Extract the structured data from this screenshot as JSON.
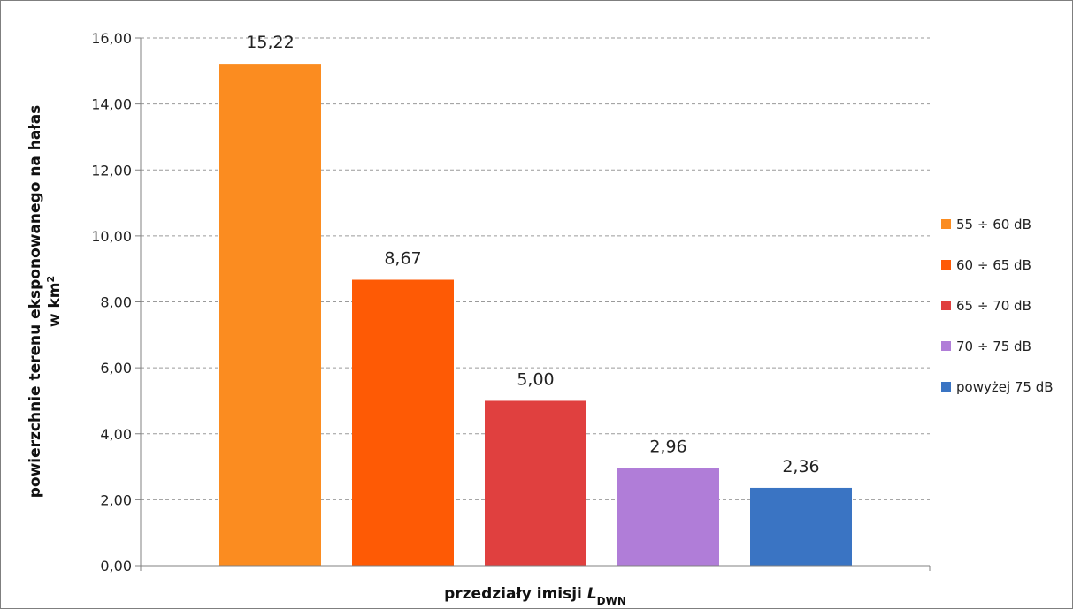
{
  "chart_data": {
    "type": "bar",
    "categories": [
      "55 ÷ 60 dB",
      "60 ÷ 65 dB",
      "65 ÷ 70 dB",
      "70 ÷ 75 dB",
      "powyżej 75 dB"
    ],
    "values": [
      15.22,
      8.67,
      5.0,
      2.96,
      2.36
    ],
    "data_labels": [
      "15,22",
      "8,67",
      "5,00",
      "2,96",
      "2,36"
    ],
    "colors": [
      "#fb8c20",
      "#fe5a05",
      "#e0403f",
      "#b07dd8",
      "#3a74c3"
    ],
    "ylim": [
      0,
      16
    ],
    "yticks": [
      "0,00",
      "2,00",
      "4,00",
      "6,00",
      "8,00",
      "10,00",
      "12,00",
      "14,00",
      "16,00"
    ],
    "ylabel_line1": "powierzchnie terenu eksponowanego na hałas",
    "ylabel_line2_prefix": "w km",
    "ylabel_line2_sup": "2",
    "xlabel_prefix": "przedziały imisji ",
    "xlabel_italic": "L",
    "xlabel_sub": "DWN",
    "legend": [
      "55 ÷ 60 dB",
      "60 ÷ 65 dB",
      "65 ÷ 70 dB",
      "70 ÷ 75 dB",
      "powyżej 75 dB"
    ],
    "legend_position": "right",
    "grid": true
  }
}
